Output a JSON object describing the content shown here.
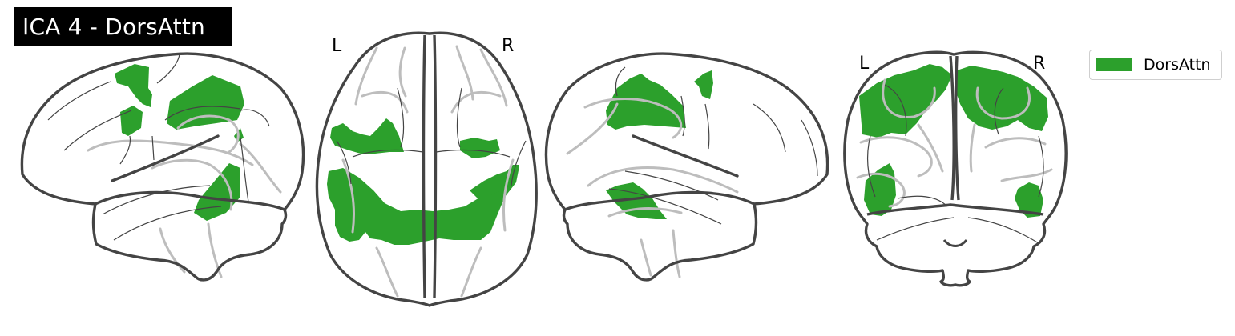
{
  "title": "ICA 4 - DorsAttn",
  "views": {
    "axial": {
      "left_label": "L",
      "right_label": "R"
    },
    "coronal": {
      "left_label": "L",
      "right_label": "R"
    }
  },
  "legend": {
    "label": "DorsAttn",
    "color": "#2ca02c"
  },
  "colors": {
    "background": "#ffffff",
    "brain_outline": "#444444",
    "deep_structures": "#bdbdbd",
    "activation": "#2ca02c"
  }
}
